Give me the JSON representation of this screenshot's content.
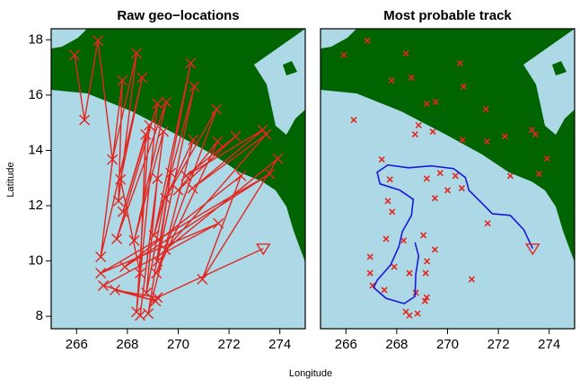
{
  "xlabel": "Longitude",
  "ylabel": "Latitude",
  "chart_data": [
    {
      "type": "line",
      "title": "Raw geo−locations",
      "xlim": [
        265,
        275
      ],
      "ylim": [
        7.55,
        18.4
      ],
      "xticks": [
        266,
        268,
        270,
        272,
        274
      ],
      "yticks": [
        8,
        10,
        12,
        14,
        16,
        18
      ],
      "series": [
        {
          "color": "#e3261f",
          "line": true,
          "marker": "x",
          "end_marker": "triangle",
          "x": [
            265.92,
            266.31,
            266.84,
            267.41,
            268.36,
            267.65,
            267.8,
            266.95,
            268.58,
            267.73,
            268.5,
            268.72,
            267.82,
            268.86,
            268.36,
            269.18,
            267.58,
            269.53,
            268.27,
            269.42,
            268.5,
            269.18,
            268.75,
            270.49,
            269.05,
            270.63,
            269.19,
            269.71,
            268.82,
            270.59,
            269.5,
            271.51,
            269.14,
            271.55,
            270.0,
            272.26,
            270.31,
            273.32,
            270.56,
            273.46,
            269.5,
            273.92,
            270.95,
            272.47,
            267.9,
            273.6,
            266.95,
            271.58,
            267.05,
            269.11,
            267.51,
            269.18,
            273.35
          ],
          "values": [
            17.45,
            15.1,
            17.97,
            13.67,
            17.51,
            12.17,
            16.53,
            10.15,
            16.63,
            12.95,
            9.56,
            14.58,
            11.78,
            14.91,
            8.16,
            15.69,
            10.8,
            15.75,
            10.74,
            14.68,
            8.03,
            12.98,
            8.85,
            17.15,
            10.93,
            16.31,
            9.99,
            13.18,
            8.1,
            14.38,
            12.27,
            15.49,
            9.56,
            14.32,
            12.56,
            14.51,
            13.08,
            14.74,
            12.63,
            14.58,
            10.41,
            13.7,
            9.34,
            13.08,
            9.79,
            13.15,
            9.56,
            11.36,
            9.11,
            8.55,
            8.95,
            8.68,
            10.45
          ]
        }
      ]
    },
    {
      "type": "scatter",
      "title": "Most probable track",
      "xlim": [
        265,
        275
      ],
      "ylim": [
        7.55,
        18.4
      ],
      "xticks": [
        266,
        268,
        270,
        272,
        274
      ],
      "series": [
        {
          "color": "#e3261f",
          "line": false,
          "marker": "x",
          "x": [
            265.92,
            266.31,
            266.84,
            267.41,
            268.36,
            267.65,
            267.8,
            266.95,
            268.58,
            267.73,
            268.5,
            268.72,
            267.82,
            268.86,
            268.36,
            269.18,
            267.58,
            269.53,
            268.27,
            269.42,
            268.5,
            269.18,
            268.75,
            270.49,
            269.05,
            270.63,
            269.19,
            269.71,
            268.82,
            270.59,
            269.5,
            271.51,
            269.14,
            271.55,
            270.0,
            272.26,
            270.31,
            273.32,
            270.56,
            273.46,
            269.5,
            273.92,
            270.95,
            272.47,
            267.9,
            273.6,
            266.95,
            271.58,
            267.05,
            269.11,
            267.51,
            269.18
          ],
          "values": [
            17.45,
            15.1,
            17.97,
            13.67,
            17.51,
            12.17,
            16.53,
            10.15,
            16.63,
            12.95,
            9.56,
            14.58,
            11.78,
            14.91,
            8.16,
            15.69,
            10.8,
            15.75,
            10.74,
            14.68,
            8.03,
            12.98,
            8.85,
            17.15,
            10.93,
            16.31,
            9.99,
            13.18,
            8.1,
            14.38,
            12.27,
            15.49,
            9.56,
            14.32,
            12.56,
            14.51,
            13.08,
            14.74,
            12.63,
            14.58,
            10.41,
            13.7,
            9.34,
            13.08,
            9.79,
            13.15,
            9.56,
            11.36,
            9.11,
            8.55,
            8.95,
            8.68
          ]
        },
        {
          "color": "#1a1ad6",
          "line": true,
          "marker": "none",
          "end_marker": "triangle",
          "end_color": "#e3261f",
          "x": [
            268.72,
            268.86,
            268.75,
            268.72,
            268.29,
            267.58,
            267.09,
            267.23,
            267.76,
            268.08,
            268.22,
            268.58,
            268.65,
            268.12,
            267.34,
            267.23,
            267.65,
            268.47,
            269.35,
            270.24,
            270.7,
            270.84,
            271.41,
            271.76,
            272.47,
            273.0,
            273.35
          ],
          "values": [
            10.67,
            10.18,
            9.53,
            8.72,
            8.46,
            8.65,
            9.04,
            9.3,
            9.86,
            10.51,
            11.06,
            11.65,
            12.23,
            12.56,
            12.79,
            13.21,
            13.47,
            13.37,
            13.44,
            13.34,
            13.02,
            12.56,
            12.04,
            11.71,
            11.65,
            11.13,
            10.45
          ]
        }
      ]
    }
  ]
}
